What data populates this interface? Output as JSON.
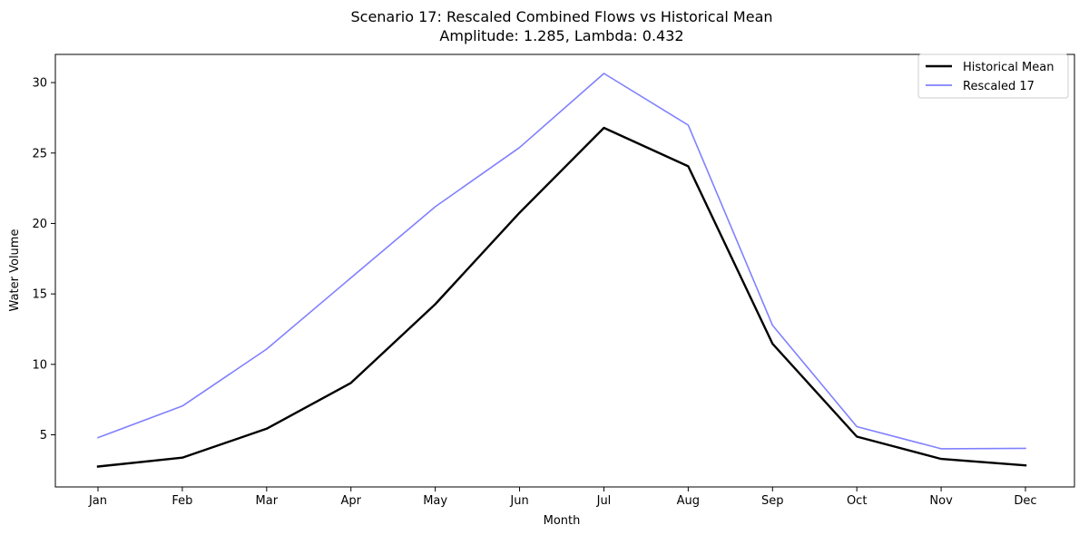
{
  "chart_data": {
    "type": "line",
    "title": "Scenario 17: Rescaled Combined Flows vs Historical Mean",
    "subtitle": "Amplitude: 1.285, Lambda: 0.432",
    "xlabel": "Month",
    "ylabel": "Water Volume",
    "categories": [
      "Jan",
      "Feb",
      "Mar",
      "Apr",
      "May",
      "Jun",
      "Jul",
      "Aug",
      "Sep",
      "Oct",
      "Nov",
      "Dec"
    ],
    "ylim": [
      1.3,
      32.0
    ],
    "yticks": [
      5,
      10,
      15,
      20,
      25,
      30
    ],
    "grid": false,
    "legend_position": "top-right",
    "series": [
      {
        "name": "Historical Mean",
        "color": "#000000",
        "values": [
          2.75,
          3.38,
          5.43,
          8.68,
          14.27,
          20.76,
          26.79,
          24.06,
          11.46,
          4.87,
          3.29,
          2.83
        ]
      },
      {
        "name": "Rescaled 17",
        "color": "#8080ff",
        "values": [
          4.8,
          7.04,
          11.08,
          16.14,
          21.19,
          25.39,
          30.65,
          26.98,
          12.77,
          5.58,
          4.01,
          4.04
        ]
      }
    ]
  }
}
